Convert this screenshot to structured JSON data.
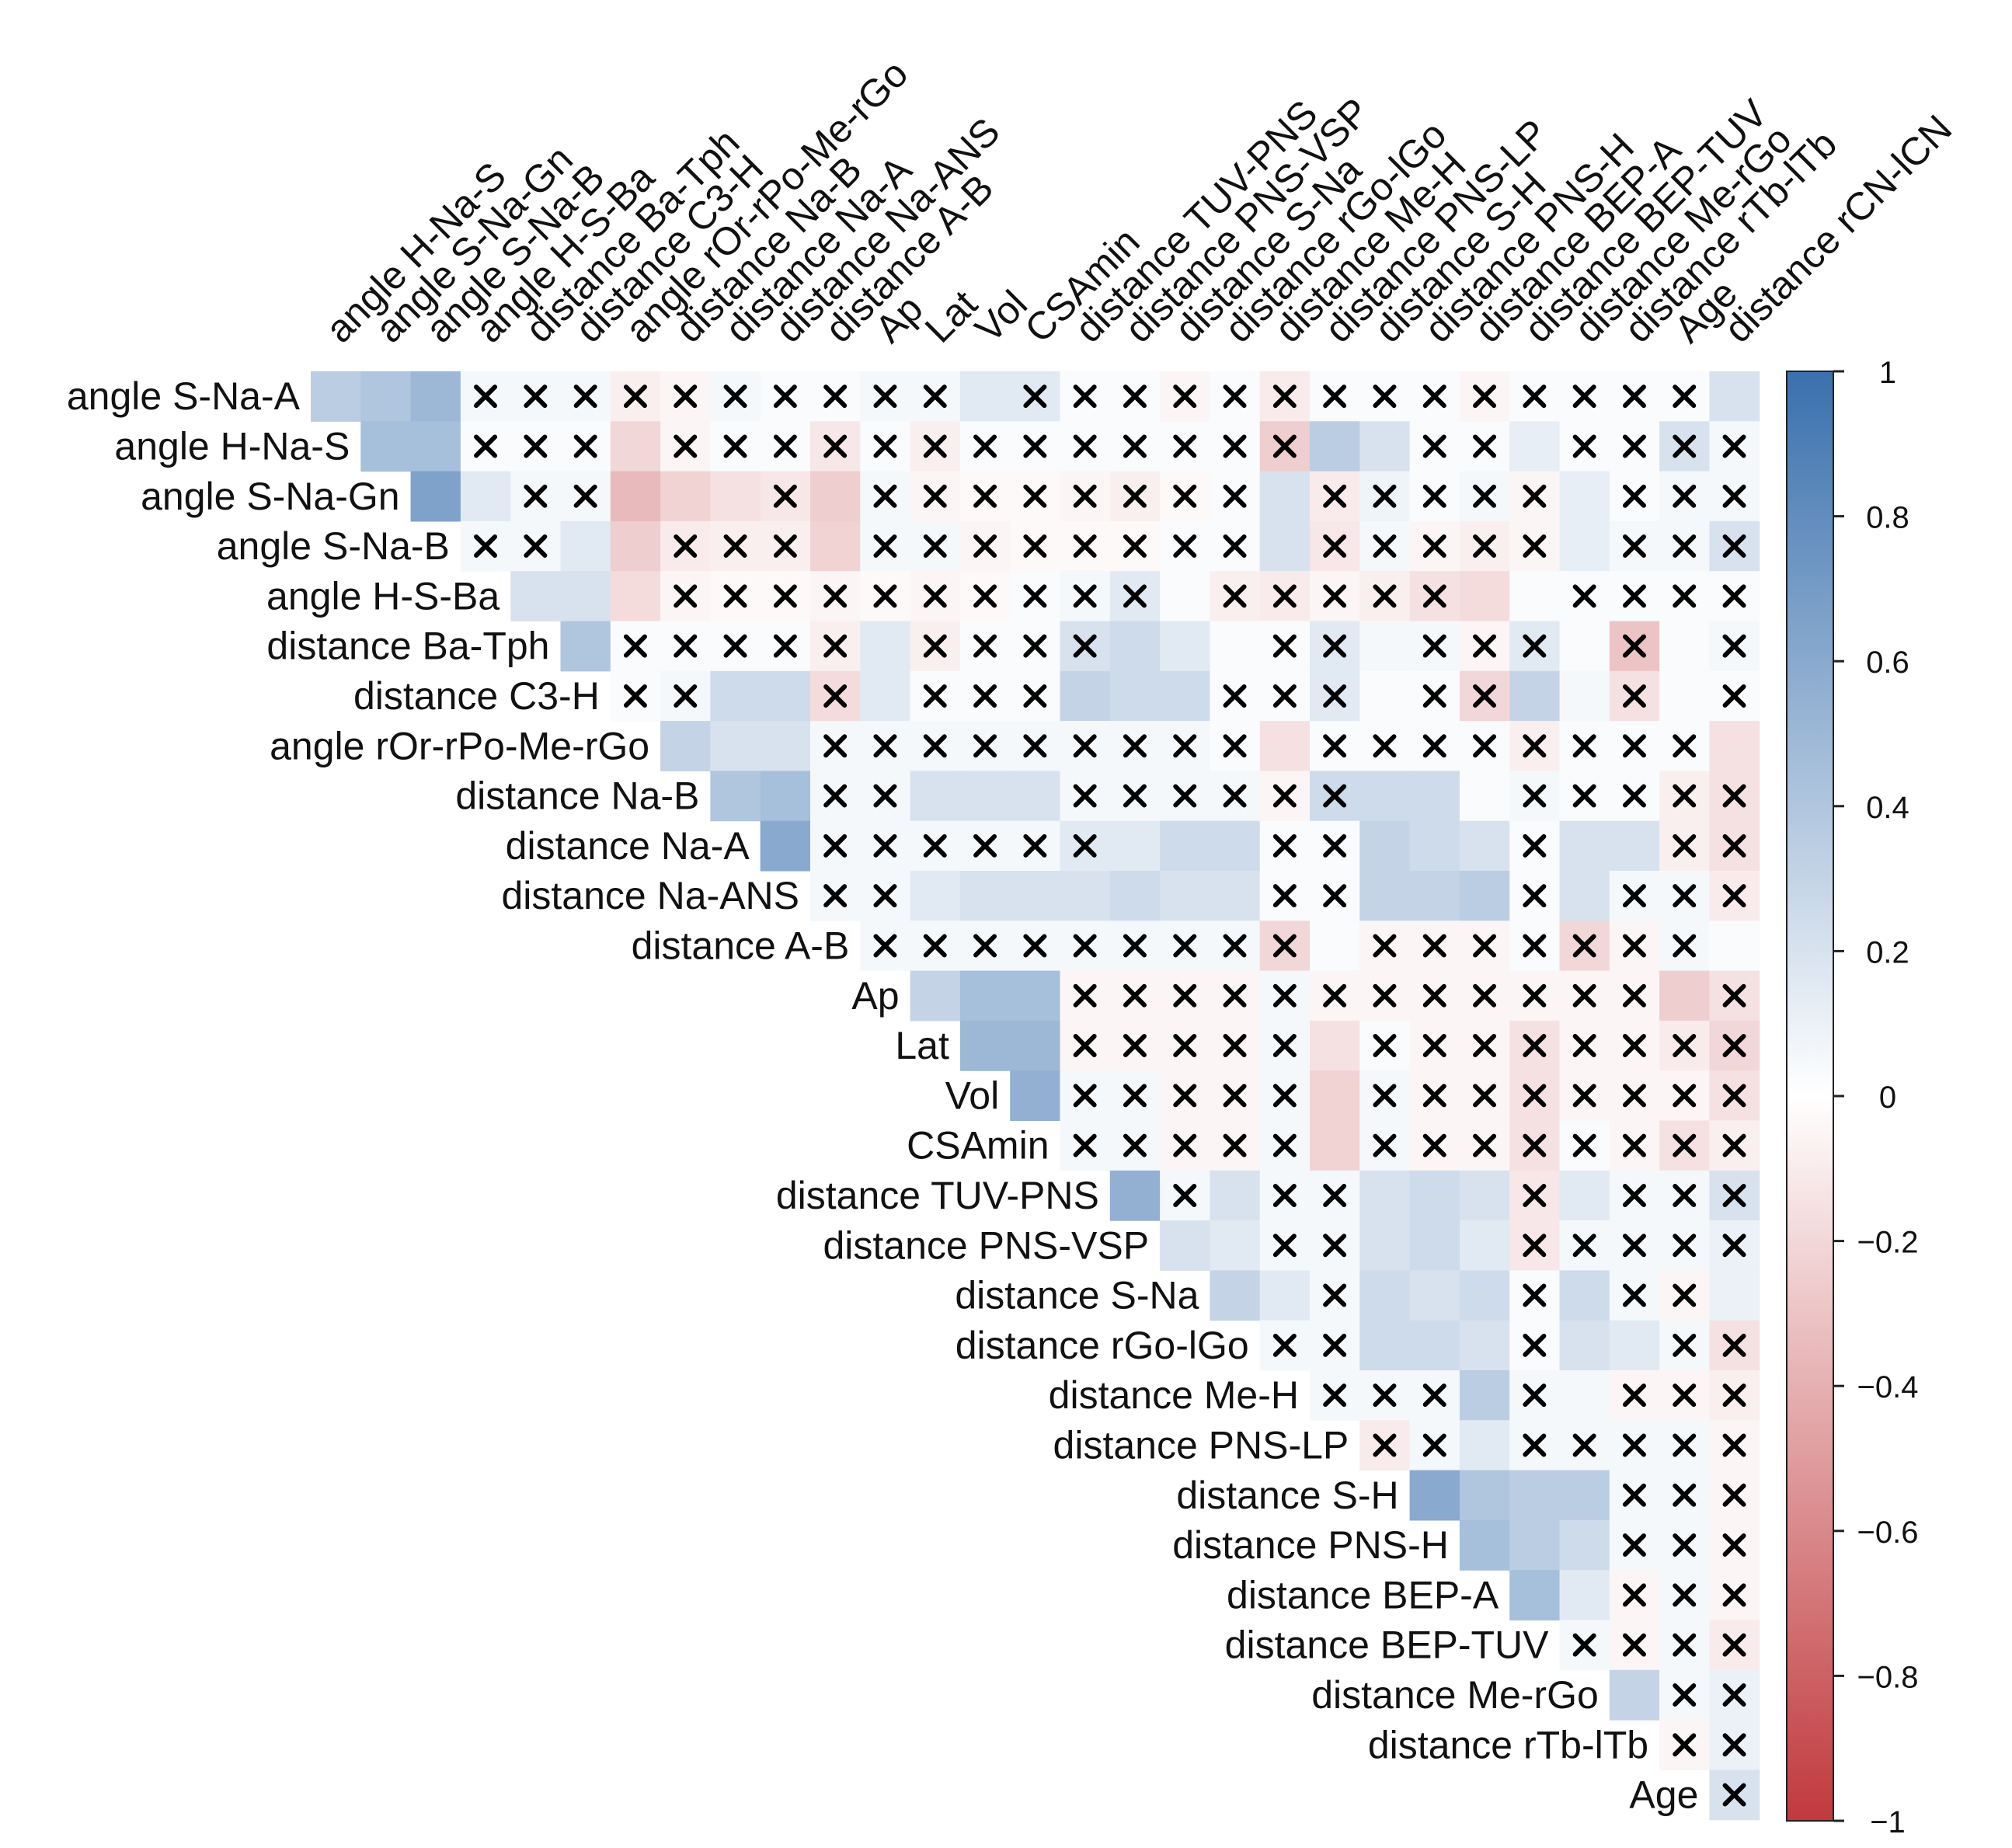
{
  "colors": {
    "positive": "#3a70ad",
    "neutral": "#ffffff",
    "negative": "#c0393d",
    "cross": "#000000"
  },
  "chart_data": {
    "type": "heatmap",
    "title": "",
    "layout": "upper-triangle",
    "x_labels": [
      "angle H-Na-S",
      "angle S-Na-Gn",
      "angle S-Na-B",
      "angle H-S-Ba",
      "distance Ba-Tph",
      "distance C3-H",
      "angle rOr-rPo-Me-rGo",
      "distance Na-B",
      "distance Na-A",
      "distance Na-ANS",
      "distance A-B",
      "Ap",
      "Lat",
      "Vol",
      "CSAmin",
      "distance TUV-PNS",
      "distance PNS-VSP",
      "distance S-Na",
      "distance rGo-lGo",
      "distance Me-H",
      "distance PNS-LP",
      "distance S-H",
      "distance PNS-H",
      "distance BEP-A",
      "distance BEP-TUV",
      "distance Me-rGo",
      "distance rTb-lTb",
      "Age",
      "distance rCN-lCN"
    ],
    "y_labels": [
      "angle S-Na-A",
      "angle H-Na-S",
      "angle S-Na-Gn",
      "angle S-Na-B",
      "angle H-S-Ba",
      "distance Ba-Tph",
      "distance C3-H",
      "angle rOr-rPo-Me-rGo",
      "distance Na-B",
      "distance Na-A",
      "distance Na-ANS",
      "distance A-B",
      "Ap",
      "Lat",
      "Vol",
      "CSAmin",
      "distance TUV-PNS",
      "distance PNS-VSP",
      "distance S-Na",
      "distance rGo-lGo",
      "distance Me-H",
      "distance PNS-LP",
      "distance S-H",
      "distance PNS-H",
      "distance BEP-A",
      "distance BEP-TUV",
      "distance Me-rGo",
      "distance rTb-lTb",
      "Age"
    ],
    "values": [
      [
        0.35,
        0.4,
        0.5,
        0.05,
        0.05,
        0.05,
        -0.08,
        -0.05,
        0.05,
        0.03,
        0.03,
        0.05,
        0.05,
        0.15,
        0.15,
        0.03,
        0.03,
        -0.05,
        0.03,
        -0.1,
        0.03,
        0.03,
        0.03,
        -0.05,
        0.03,
        0.03,
        0.03,
        0.03,
        0.2
      ],
      [
        null,
        0.45,
        0.45,
        0.03,
        0.03,
        0.03,
        -0.2,
        -0.05,
        0.03,
        0.03,
        -0.12,
        0.03,
        -0.08,
        0.03,
        0.03,
        0.03,
        0.03,
        0.03,
        0.03,
        -0.25,
        0.35,
        0.2,
        0.03,
        0.03,
        0.12,
        0.03,
        0.03,
        0.2,
        0.05
      ],
      [
        null,
        null,
        0.65,
        0.15,
        0.05,
        0.05,
        -0.35,
        -0.22,
        -0.15,
        -0.12,
        -0.25,
        0.05,
        -0.05,
        -0.03,
        -0.03,
        -0.05,
        -0.08,
        -0.03,
        0.03,
        0.2,
        -0.1,
        0.08,
        0.03,
        0.05,
        -0.05,
        0.12,
        0.03,
        0.05,
        0.05
      ],
      [
        null,
        null,
        null,
        0.05,
        0.05,
        0.15,
        -0.25,
        -0.1,
        -0.08,
        -0.08,
        -0.22,
        0.05,
        0.05,
        -0.05,
        -0.03,
        -0.03,
        -0.03,
        0.03,
        0.03,
        0.2,
        -0.12,
        0.05,
        -0.05,
        -0.08,
        -0.05,
        0.12,
        0.05,
        0.05,
        0.2
      ],
      [
        null,
        null,
        null,
        null,
        0.2,
        0.2,
        -0.18,
        -0.05,
        -0.03,
        -0.03,
        -0.05,
        -0.03,
        -0.05,
        -0.03,
        0.03,
        0.05,
        0.15,
        0.03,
        -0.08,
        -0.1,
        -0.05,
        -0.08,
        -0.15,
        -0.18,
        0.03,
        0.03,
        0.03,
        0.03,
        0.03
      ],
      [
        null,
        null,
        null,
        null,
        null,
        0.4,
        0.03,
        0.03,
        0.03,
        0.03,
        -0.08,
        0.15,
        -0.08,
        0.03,
        0.03,
        0.2,
        0.25,
        0.15,
        0.03,
        0.03,
        0.15,
        0.05,
        0.05,
        -0.05,
        0.15,
        0.03,
        -0.3,
        0.03,
        0.05
      ],
      [
        null,
        null,
        null,
        null,
        null,
        null,
        0.03,
        0.05,
        0.25,
        0.25,
        -0.18,
        0.15,
        0.03,
        0.03,
        0.03,
        0.3,
        0.25,
        0.25,
        0.03,
        0.03,
        0.15,
        0.03,
        0.03,
        -0.2,
        0.3,
        0.05,
        -0.15,
        0.03,
        0.03
      ],
      [
        null,
        null,
        null,
        null,
        null,
        null,
        null,
        0.3,
        0.2,
        0.2,
        0.05,
        0.05,
        0.05,
        0.05,
        0.05,
        0.05,
        0.05,
        0.05,
        0.03,
        -0.15,
        0.03,
        0.03,
        0.03,
        0.03,
        -0.08,
        0.03,
        0.03,
        0.03,
        -0.15
      ],
      [
        null,
        null,
        null,
        null,
        null,
        null,
        null,
        null,
        0.4,
        0.45,
        0.05,
        0.05,
        0.2,
        0.2,
        0.2,
        0.05,
        0.05,
        0.05,
        0.05,
        -0.05,
        0.25,
        0.25,
        0.25,
        0.03,
        0.05,
        0.03,
        0.03,
        -0.08,
        -0.15
      ],
      [
        null,
        null,
        null,
        null,
        null,
        null,
        null,
        null,
        null,
        0.6,
        0.05,
        0.05,
        0.05,
        0.05,
        0.05,
        0.15,
        0.15,
        0.25,
        0.25,
        0.03,
        0.03,
        0.3,
        0.25,
        0.2,
        0.03,
        0.2,
        0.2,
        -0.08,
        -0.15
      ],
      [
        null,
        null,
        null,
        null,
        null,
        null,
        null,
        null,
        null,
        null,
        0.05,
        0.05,
        0.15,
        0.2,
        0.2,
        0.2,
        0.25,
        0.2,
        0.2,
        0.03,
        0.03,
        0.3,
        0.3,
        0.35,
        0.03,
        0.2,
        0.05,
        0.05,
        -0.1
      ],
      [
        null,
        null,
        null,
        null,
        null,
        null,
        null,
        null,
        null,
        null,
        null,
        0.05,
        0.05,
        0.05,
        0.05,
        0.05,
        0.05,
        0.05,
        0.05,
        -0.2,
        0.03,
        -0.05,
        -0.05,
        -0.05,
        0.03,
        -0.2,
        -0.05,
        0.05,
        0.03
      ],
      [
        null,
        null,
        null,
        null,
        null,
        null,
        null,
        null,
        null,
        null,
        null,
        null,
        0.3,
        0.45,
        0.45,
        -0.05,
        -0.05,
        -0.05,
        -0.05,
        0.05,
        -0.05,
        -0.05,
        -0.05,
        -0.05,
        -0.05,
        -0.05,
        -0.05,
        -0.25,
        -0.15
      ],
      [
        null,
        null,
        null,
        null,
        null,
        null,
        null,
        null,
        null,
        null,
        null,
        null,
        null,
        0.5,
        0.5,
        -0.05,
        -0.05,
        -0.05,
        -0.05,
        0.05,
        -0.15,
        0.03,
        -0.05,
        -0.05,
        -0.15,
        -0.05,
        -0.05,
        -0.1,
        -0.2
      ],
      [
        null,
        null,
        null,
        null,
        null,
        null,
        null,
        null,
        null,
        null,
        null,
        null,
        null,
        null,
        0.55,
        0.05,
        0.05,
        -0.05,
        -0.05,
        0.05,
        -0.22,
        0.05,
        -0.05,
        -0.05,
        -0.15,
        -0.05,
        -0.05,
        -0.05,
        -0.15
      ],
      [
        null,
        null,
        null,
        null,
        null,
        null,
        null,
        null,
        null,
        null,
        null,
        null,
        null,
        null,
        null,
        0.05,
        0.05,
        -0.05,
        -0.05,
        0.05,
        -0.22,
        0.05,
        -0.05,
        -0.05,
        -0.15,
        0.03,
        -0.05,
        -0.15,
        -0.08
      ],
      [
        null,
        null,
        null,
        null,
        null,
        null,
        null,
        null,
        null,
        null,
        null,
        null,
        null,
        null,
        null,
        null,
        0.55,
        0.05,
        0.2,
        0.05,
        0.05,
        0.2,
        0.25,
        0.2,
        -0.12,
        0.15,
        0.05,
        0.05,
        0.2
      ],
      [
        null,
        null,
        null,
        null,
        null,
        null,
        null,
        null,
        null,
        null,
        null,
        null,
        null,
        null,
        null,
        null,
        null,
        0.2,
        0.15,
        0.05,
        0.05,
        0.2,
        0.25,
        0.15,
        -0.12,
        0.05,
        0.05,
        0.05,
        0.1
      ],
      [
        null,
        null,
        null,
        null,
        null,
        null,
        null,
        null,
        null,
        null,
        null,
        null,
        null,
        null,
        null,
        null,
        null,
        null,
        0.3,
        0.15,
        0.05,
        0.25,
        0.2,
        0.25,
        0.03,
        0.25,
        0.05,
        -0.05,
        0.1
      ],
      [
        null,
        null,
        null,
        null,
        null,
        null,
        null,
        null,
        null,
        null,
        null,
        null,
        null,
        null,
        null,
        null,
        null,
        null,
        null,
        0.05,
        0.05,
        0.25,
        0.25,
        0.2,
        0.03,
        0.2,
        0.15,
        0.05,
        -0.15
      ],
      [
        null,
        null,
        null,
        null,
        null,
        null,
        null,
        null,
        null,
        null,
        null,
        null,
        null,
        null,
        null,
        null,
        null,
        null,
        null,
        null,
        0.05,
        0.05,
        0.05,
        0.35,
        0.05,
        0.05,
        -0.05,
        -0.05,
        -0.08
      ],
      [
        null,
        null,
        null,
        null,
        null,
        null,
        null,
        null,
        null,
        null,
        null,
        null,
        null,
        null,
        null,
        null,
        null,
        null,
        null,
        null,
        null,
        -0.1,
        0.05,
        0.15,
        0.05,
        0.05,
        0.05,
        0.05,
        -0.05
      ],
      [
        null,
        null,
        null,
        null,
        null,
        null,
        null,
        null,
        null,
        null,
        null,
        null,
        null,
        null,
        null,
        null,
        null,
        null,
        null,
        null,
        null,
        null,
        0.6,
        0.4,
        0.35,
        0.35,
        0.05,
        0.05,
        -0.05
      ],
      [
        null,
        null,
        null,
        null,
        null,
        null,
        null,
        null,
        null,
        null,
        null,
        null,
        null,
        null,
        null,
        null,
        null,
        null,
        null,
        null,
        null,
        null,
        null,
        0.45,
        0.35,
        0.25,
        0.05,
        0.05,
        -0.05
      ],
      [
        null,
        null,
        null,
        null,
        null,
        null,
        null,
        null,
        null,
        null,
        null,
        null,
        null,
        null,
        null,
        null,
        null,
        null,
        null,
        null,
        null,
        null,
        null,
        null,
        0.45,
        0.15,
        -0.05,
        0.05,
        -0.05
      ],
      [
        null,
        null,
        null,
        null,
        null,
        null,
        null,
        null,
        null,
        null,
        null,
        null,
        null,
        null,
        null,
        null,
        null,
        null,
        null,
        null,
        null,
        null,
        null,
        null,
        null,
        0.05,
        -0.05,
        0.05,
        -0.1
      ],
      [
        null,
        null,
        null,
        null,
        null,
        null,
        null,
        null,
        null,
        null,
        null,
        null,
        null,
        null,
        null,
        null,
        null,
        null,
        null,
        null,
        null,
        null,
        null,
        null,
        null,
        null,
        0.3,
        0.05,
        0.1
      ],
      [
        null,
        null,
        null,
        null,
        null,
        null,
        null,
        null,
        null,
        null,
        null,
        null,
        null,
        null,
        null,
        null,
        null,
        null,
        null,
        null,
        null,
        null,
        null,
        null,
        null,
        null,
        null,
        -0.05,
        0.1
      ],
      [
        null,
        null,
        null,
        null,
        null,
        null,
        null,
        null,
        null,
        null,
        null,
        null,
        null,
        null,
        null,
        null,
        null,
        null,
        null,
        null,
        null,
        null,
        null,
        null,
        null,
        null,
        null,
        null,
        0.2
      ]
    ],
    "crossed": [
      "0,3",
      "0,4",
      "0,5",
      "0,6",
      "0,7",
      "0,8",
      "0,9",
      "0,10",
      "0,11",
      "0,12",
      "0,14",
      "0,15",
      "0,16",
      "0,17",
      "0,18",
      "0,19",
      "0,20",
      "0,21",
      "0,22",
      "0,23",
      "0,24",
      "0,25",
      "0,26",
      "0,27",
      "1,3",
      "1,4",
      "1,5",
      "1,7",
      "1,8",
      "1,9",
      "1,10",
      "1,11",
      "1,12",
      "1,13",
      "1,14",
      "1,15",
      "1,16",
      "1,17",
      "1,18",
      "1,19",
      "1,22",
      "1,23",
      "1,25",
      "1,26",
      "1,27",
      "1,28",
      "2,4",
      "2,5",
      "2,9",
      "2,11",
      "2,12",
      "2,13",
      "2,14",
      "2,15",
      "2,16",
      "2,17",
      "2,18",
      "2,20",
      "2,21",
      "2,22",
      "2,23",
      "2,24",
      "2,26",
      "2,27",
      "2,28",
      "3,3",
      "3,4",
      "3,7",
      "3,8",
      "3,9",
      "3,11",
      "3,12",
      "3,13",
      "3,14",
      "3,15",
      "3,16",
      "3,17",
      "3,18",
      "3,20",
      "3,21",
      "3,22",
      "3,23",
      "3,24",
      "3,26",
      "3,27",
      "3,28",
      "4,7",
      "4,8",
      "4,9",
      "4,10",
      "4,11",
      "4,12",
      "4,13",
      "4,14",
      "4,15",
      "4,16",
      "4,18",
      "4,19",
      "4,20",
      "4,21",
      "4,22",
      "4,25",
      "4,26",
      "4,27",
      "4,28",
      "5,6",
      "5,7",
      "5,8",
      "5,9",
      "5,10",
      "5,12",
      "5,13",
      "5,14",
      "5,15",
      "5,19",
      "5,20",
      "5,22",
      "5,23",
      "5,24",
      "5,26",
      "5,28",
      "6,6",
      "6,7",
      "6,10",
      "6,12",
      "6,13",
      "6,14",
      "6,18",
      "6,19",
      "6,20",
      "6,22",
      "6,23",
      "6,26",
      "6,28",
      "7,10",
      "7,11",
      "7,12",
      "7,13",
      "7,14",
      "7,15",
      "7,16",
      "7,17",
      "7,18",
      "7,20",
      "7,21",
      "7,22",
      "7,23",
      "7,24",
      "7,25",
      "7,26",
      "7,27",
      "8,10",
      "8,11",
      "8,15",
      "8,16",
      "8,17",
      "8,18",
      "8,19",
      "8,20",
      "8,24",
      "8,25",
      "8,26",
      "8,27",
      "8,28",
      "9,10",
      "9,11",
      "9,12",
      "9,13",
      "9,14",
      "9,15",
      "9,19",
      "9,20",
      "9,24",
      "9,27",
      "9,28",
      "10,10",
      "10,11",
      "10,19",
      "10,20",
      "10,24",
      "10,26",
      "10,27",
      "10,28",
      "11,11",
      "11,12",
      "11,13",
      "11,14",
      "11,15",
      "11,16",
      "11,17",
      "11,18",
      "11,19",
      "11,21",
      "11,22",
      "11,23",
      "11,24",
      "11,25",
      "11,26",
      "11,27",
      "12,15",
      "12,16",
      "12,17",
      "12,18",
      "12,19",
      "12,20",
      "12,21",
      "12,22",
      "12,23",
      "12,24",
      "12,25",
      "12,26",
      "12,28",
      "13,15",
      "13,16",
      "13,17",
      "13,18",
      "13,19",
      "13,21",
      "13,22",
      "13,23",
      "13,24",
      "13,25",
      "13,26",
      "13,27",
      "13,28",
      "14,15",
      "14,16",
      "14,17",
      "14,18",
      "14,19",
      "14,21",
      "14,22",
      "14,23",
      "14,24",
      "14,25",
      "14,26",
      "14,27",
      "14,28",
      "15,15",
      "15,16",
      "15,17",
      "15,18",
      "15,19",
      "15,21",
      "15,22",
      "15,23",
      "15,24",
      "15,25",
      "15,26",
      "15,27",
      "15,28",
      "16,17",
      "16,19",
      "16,20",
      "16,24",
      "16,26",
      "16,27",
      "16,28",
      "17,19",
      "17,20",
      "17,24",
      "17,25",
      "17,26",
      "17,27",
      "17,28",
      "18,20",
      "18,24",
      "18,26",
      "18,27",
      "19,19",
      "19,20",
      "19,24",
      "19,27",
      "19,28",
      "20,20",
      "20,21",
      "20,22",
      "20,24",
      "20,26",
      "20,27",
      "20,28",
      "21,21",
      "21,22",
      "21,24",
      "21,25",
      "21,26",
      "21,27",
      "21,28",
      "22,26",
      "22,27",
      "22,28",
      "23,26",
      "23,27",
      "23,28",
      "24,26",
      "24,27",
      "24,28",
      "25,25",
      "25,26",
      "25,27",
      "25,28",
      "26,27",
      "26,28",
      "27,27",
      "27,28",
      "28,28"
    ],
    "colorbar": {
      "min": -1,
      "max": 1,
      "ticks": [
        "1",
        "0.8",
        "0.6",
        "0.4",
        "0.2",
        "0",
        "−0.2",
        "−0.4",
        "−0.6",
        "−0.8",
        "−1"
      ]
    }
  }
}
